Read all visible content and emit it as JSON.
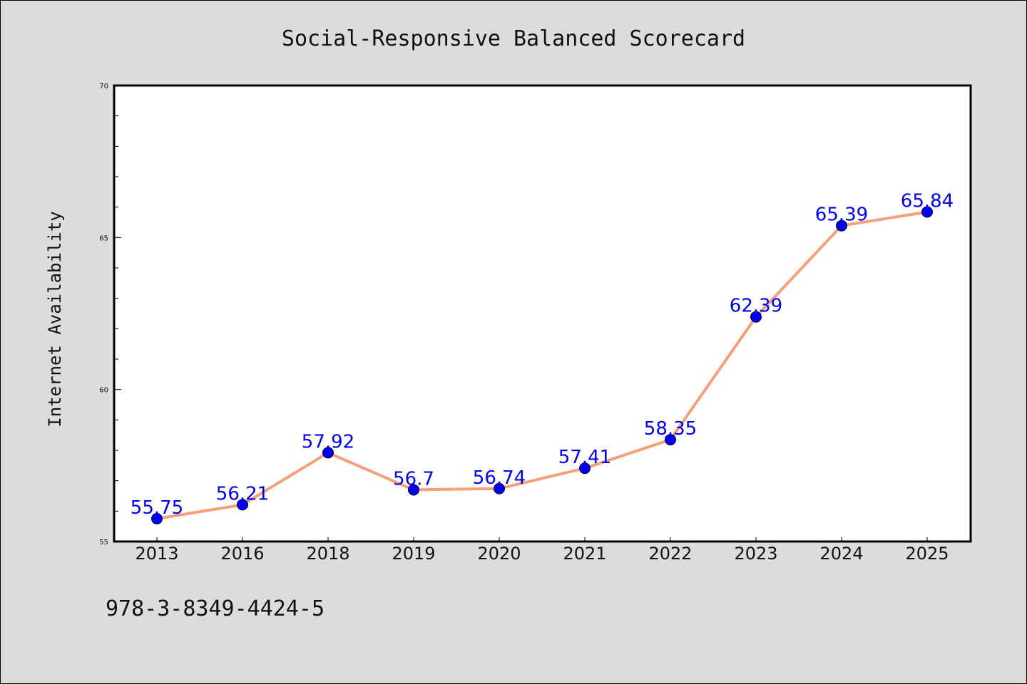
{
  "chart_data": {
    "type": "line",
    "title": "Social-Responsive Balanced Scorecard",
    "xlabel": "",
    "ylabel": "Internet Availability",
    "categories": [
      "2013",
      "2016",
      "2018",
      "2019",
      "2020",
      "2021",
      "2022",
      "2023",
      "2024",
      "2025"
    ],
    "series": [
      {
        "values": [
          55.75,
          56.21,
          57.92,
          56.7,
          56.74,
          57.41,
          58.35,
          62.39,
          65.39,
          65.84
        ],
        "labels": [
          "55.75",
          "56.21",
          "57.92",
          "56.7",
          "56.74",
          "57.41",
          "58.35",
          "62.39",
          "65.39",
          "65.84"
        ]
      }
    ],
    "ylim": [
      55,
      70
    ],
    "yticks": [
      "55",
      "60",
      "65",
      "70"
    ],
    "y_minor_step": 1,
    "grid": false,
    "line_color": "#f4a07c",
    "marker_color": "#0000ee",
    "label_color": "#0000ee"
  },
  "footer": {
    "isbn": "978-3-8349-4424-5"
  }
}
